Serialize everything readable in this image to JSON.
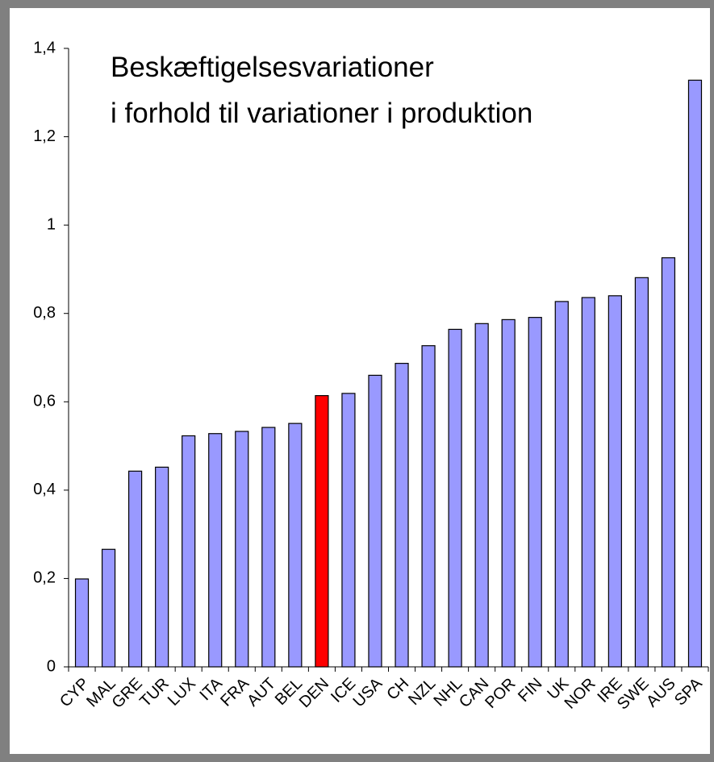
{
  "chart_data": {
    "type": "bar",
    "title": [
      "Beskæftigelsesvariationer",
      "i forhold til variationer i produktion"
    ],
    "categories": [
      "CYP",
      "MAL",
      "GRE",
      "TUR",
      "LUX",
      "ITA",
      "FRA",
      "AUT",
      "BEL",
      "DEN",
      "ICE",
      "USA",
      "CH",
      "NZL",
      "NHL",
      "CAN",
      "POR",
      "FIN",
      "UK",
      "NOR",
      "IRE",
      "SWE",
      "AUS",
      "SPA"
    ],
    "values": [
      0.199,
      0.266,
      0.443,
      0.452,
      0.523,
      0.528,
      0.533,
      0.542,
      0.551,
      0.614,
      0.619,
      0.66,
      0.687,
      0.727,
      0.764,
      0.777,
      0.786,
      0.791,
      0.827,
      0.836,
      0.84,
      0.881,
      0.926,
      1.328
    ],
    "colors": [
      "#9999ff",
      "#9999ff",
      "#9999ff",
      "#9999ff",
      "#9999ff",
      "#9999ff",
      "#9999ff",
      "#9999ff",
      "#9999ff",
      "#ff0000",
      "#9999ff",
      "#9999ff",
      "#9999ff",
      "#9999ff",
      "#9999ff",
      "#9999ff",
      "#9999ff",
      "#9999ff",
      "#9999ff",
      "#9999ff",
      "#9999ff",
      "#9999ff",
      "#9999ff",
      "#9999ff"
    ],
    "ylim": [
      0,
      1.4
    ],
    "yticks": [
      0,
      {
        "value": 0.2,
        "label": "0,2"
      },
      {
        "value": 0.4,
        "label": "0,4"
      },
      {
        "value": 0.6,
        "label": "0,6"
      },
      {
        "value": 0.8,
        "label": "0,8"
      },
      1,
      {
        "value": 1.2,
        "label": "1,2"
      },
      {
        "value": 1.4,
        "label": "1,4"
      }
    ],
    "grid": false
  }
}
